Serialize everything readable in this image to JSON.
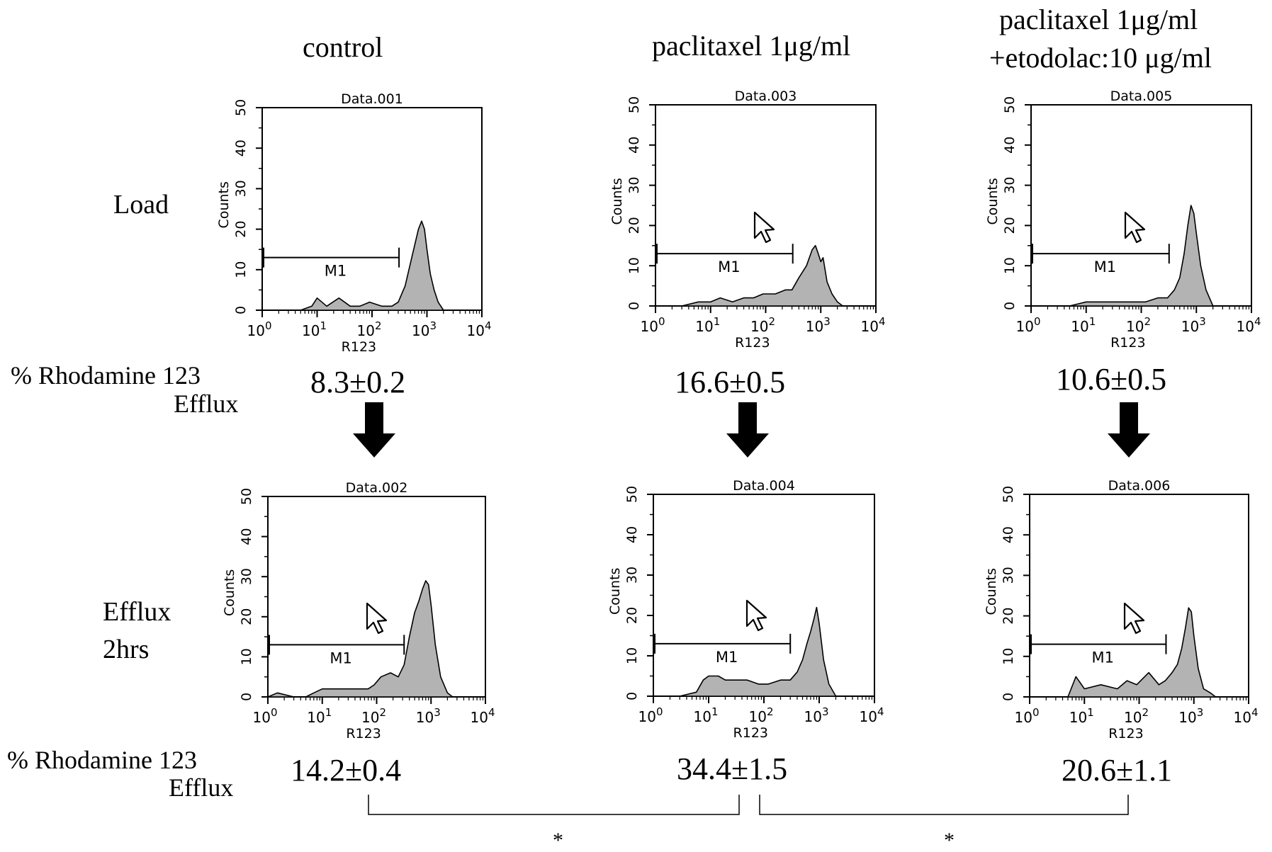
{
  "column_headers": {
    "control": "control",
    "paclitaxel": "paclitaxel 1μg/ml",
    "combo_line1": "paclitaxel 1μg/ml",
    "combo_line2": "+etodolac:10 μg/ml"
  },
  "row_labels": {
    "load": "Load",
    "efflux_line1": "Efflux",
    "efflux_line2": "2hrs"
  },
  "efflux_metric": {
    "line1": "% Rhodamine 123",
    "line2": "Efflux"
  },
  "values_load": [
    "8.3±0.2",
    "16.6±0.5",
    "10.6±0.5"
  ],
  "values_efflux": [
    "14.2±0.4",
    "34.4±1.5",
    "20.6±1.1"
  ],
  "significance": [
    "*",
    "*"
  ],
  "chart_data": [
    {
      "type": "area",
      "title": "Data.001",
      "xlabel": "R123",
      "ylabel": "Counts",
      "xscale": "log",
      "xlim": [
        1,
        10000
      ],
      "ylim": [
        0,
        50
      ],
      "gate": {
        "label": "M1",
        "from": 1,
        "to": 310
      },
      "x": [
        1,
        5,
        8,
        10,
        15,
        25,
        40,
        60,
        90,
        150,
        230,
        300,
        400,
        550,
        700,
        800,
        900,
        1000,
        1150,
        1350,
        1600,
        2000,
        2500,
        10000
      ],
      "y": [
        0,
        0,
        1,
        3,
        1,
        3,
        1,
        1,
        2,
        1,
        1,
        2,
        6,
        14,
        20,
        22,
        20,
        15,
        9,
        5,
        2,
        0,
        0,
        0
      ]
    },
    {
      "type": "area",
      "title": "Data.003",
      "xlabel": "R123",
      "ylabel": "Counts",
      "xscale": "log",
      "xlim": [
        1,
        10000
      ],
      "ylim": [
        0,
        50
      ],
      "gate": {
        "label": "M1",
        "from": 1,
        "to": 310
      },
      "x": [
        1,
        3,
        6,
        10,
        15,
        25,
        40,
        60,
        90,
        150,
        230,
        300,
        400,
        550,
        700,
        800,
        900,
        1000,
        1100,
        1300,
        1600,
        2000,
        2500,
        3000,
        10000
      ],
      "y": [
        0,
        0,
        1,
        1,
        2,
        1,
        2,
        2,
        3,
        3,
        4,
        4,
        7,
        10,
        14,
        15,
        13,
        11,
        12,
        6,
        3,
        1,
        0,
        0,
        0
      ]
    },
    {
      "type": "area",
      "title": "Data.005",
      "xlabel": "R123",
      "ylabel": "Counts",
      "xscale": "log",
      "xlim": [
        1,
        10000
      ],
      "ylim": [
        0,
        50
      ],
      "gate": {
        "label": "M1",
        "from": 1,
        "to": 320
      },
      "x": [
        1,
        5,
        10,
        20,
        40,
        70,
        120,
        200,
        300,
        400,
        500,
        600,
        700,
        800,
        900,
        1000,
        1200,
        1500,
        2000,
        2500,
        10000
      ],
      "y": [
        0,
        0,
        1,
        1,
        1,
        1,
        1,
        2,
        2,
        4,
        7,
        13,
        20,
        25,
        23,
        18,
        10,
        4,
        0,
        0,
        0
      ]
    },
    {
      "type": "area",
      "title": "Data.002",
      "xlabel": "R123",
      "ylabel": "Counts",
      "xscale": "log",
      "xlim": [
        1,
        10000
      ],
      "ylim": [
        0,
        50
      ],
      "gate": {
        "label": "M1",
        "from": 1,
        "to": 320
      },
      "x": [
        1,
        1.5,
        3,
        5,
        7,
        10,
        20,
        40,
        70,
        90,
        120,
        180,
        250,
        320,
        400,
        500,
        600,
        700,
        800,
        900,
        1000,
        1200,
        1500,
        2000,
        2500,
        10000
      ],
      "y": [
        0,
        1,
        0,
        0,
        1,
        2,
        2,
        2,
        2,
        3,
        5,
        6,
        5,
        8,
        15,
        21,
        24,
        27,
        29,
        28,
        23,
        13,
        5,
        1,
        0,
        0
      ]
    },
    {
      "type": "area",
      "title": "Data.004",
      "xlabel": "R123",
      "ylabel": "Counts",
      "xscale": "log",
      "xlim": [
        1,
        10000
      ],
      "ylim": [
        0,
        50
      ],
      "gate": {
        "label": "M1",
        "from": 1,
        "to": 300
      },
      "x": [
        1,
        3,
        6,
        8,
        10,
        15,
        20,
        30,
        50,
        80,
        120,
        200,
        300,
        400,
        500,
        600,
        700,
        800,
        900,
        1000,
        1200,
        1500,
        2000,
        10000
      ],
      "y": [
        0,
        0,
        1,
        4,
        5,
        5,
        4,
        4,
        4,
        3,
        3,
        4,
        4,
        6,
        9,
        13,
        16,
        19,
        22,
        18,
        9,
        3,
        0,
        0
      ]
    },
    {
      "type": "area",
      "title": "Data.006",
      "xlabel": "R123",
      "ylabel": "Counts",
      "xscale": "log",
      "xlim": [
        1,
        10000
      ],
      "ylim": [
        0,
        50
      ],
      "gate": {
        "label": "M1",
        "from": 1,
        "to": 310
      },
      "x": [
        1,
        5,
        7,
        10,
        20,
        40,
        60,
        90,
        150,
        230,
        300,
        400,
        500,
        600,
        700,
        800,
        900,
        1000,
        1200,
        1500,
        2000,
        2500,
        10000
      ],
      "y": [
        0,
        0,
        5,
        2,
        3,
        2,
        4,
        3,
        6,
        3,
        4,
        6,
        8,
        12,
        17,
        22,
        21,
        15,
        7,
        2,
        1,
        0,
        0
      ]
    }
  ]
}
